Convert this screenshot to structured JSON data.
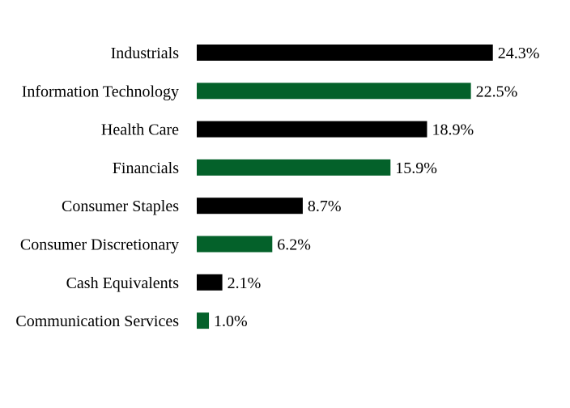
{
  "chart_data": {
    "type": "bar",
    "orientation": "horizontal",
    "title": "",
    "xlabel": "",
    "ylabel": "",
    "xlim": [
      0,
      25
    ],
    "grid": false,
    "legend": "none",
    "categories": [
      "Industrials",
      "Information Technology",
      "Health Care",
      "Financials",
      "Consumer Staples",
      "Consumer Discretionary",
      "Cash Equivalents",
      "Communication Services"
    ],
    "values": [
      24.3,
      22.5,
      18.9,
      15.9,
      8.7,
      6.2,
      2.1,
      1.0
    ],
    "value_labels": [
      "24.3%",
      "22.5%",
      "18.9%",
      "15.9%",
      "8.7%",
      "6.2%",
      "2.1%",
      "1.0%"
    ],
    "colors": [
      "#000000",
      "#04612a",
      "#000000",
      "#04612a",
      "#000000",
      "#04612a",
      "#000000",
      "#04612a"
    ]
  }
}
